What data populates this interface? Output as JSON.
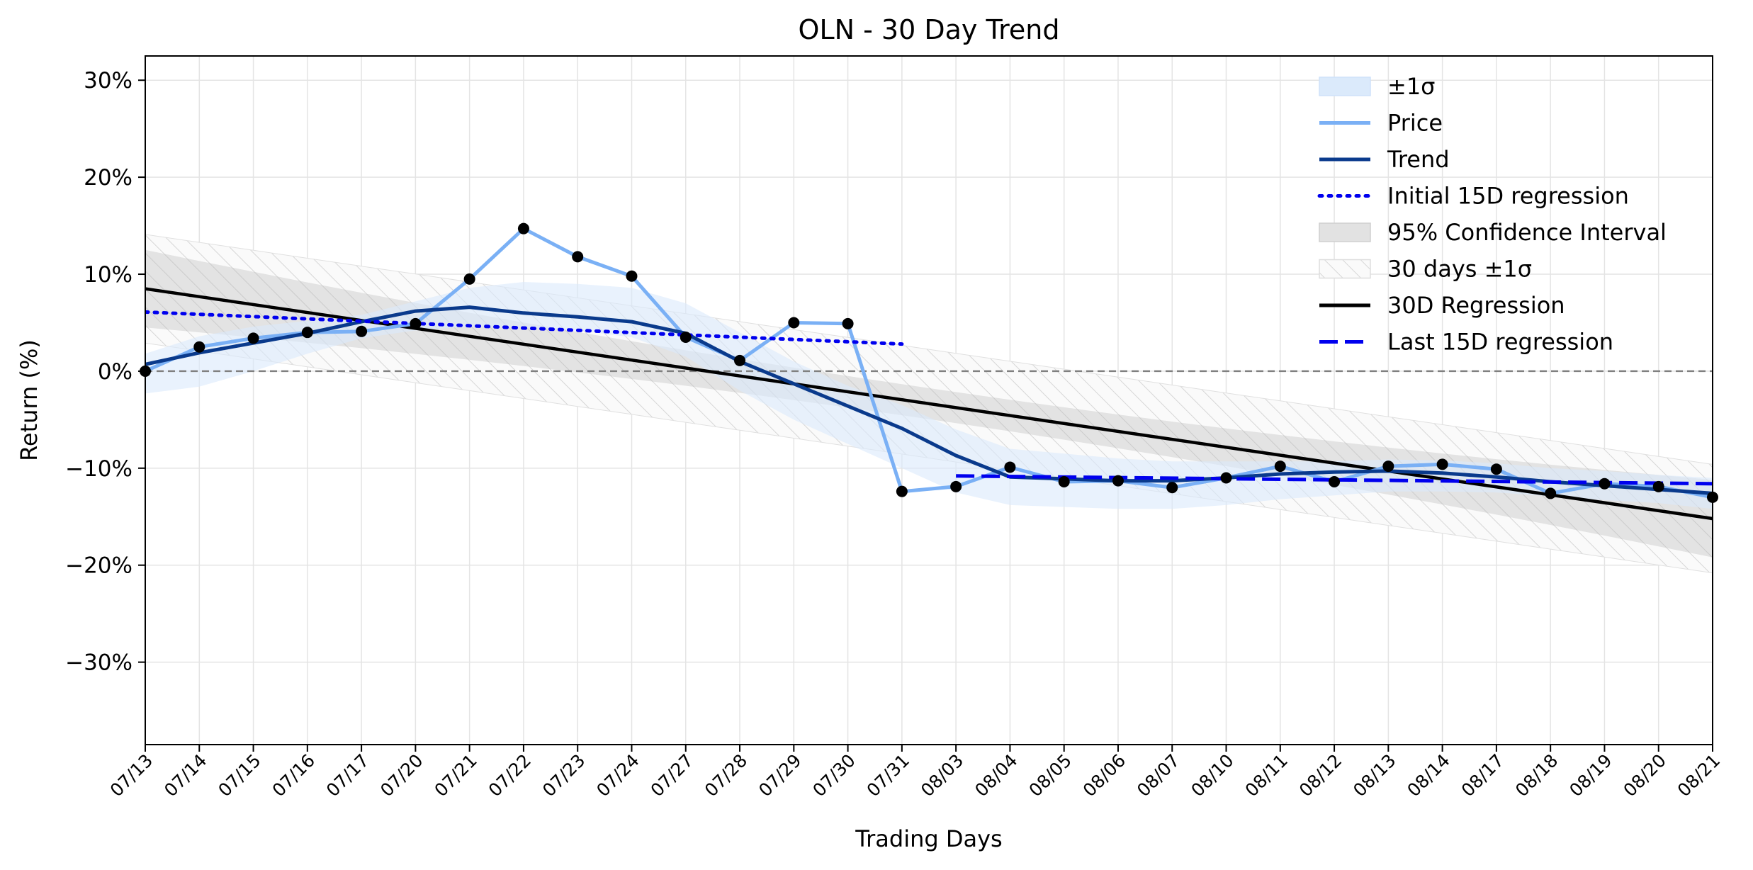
{
  "chart_data": {
    "type": "line",
    "title": "OLN - 30 Day Trend",
    "xlabel": "Trading Days",
    "ylabel": "Return (%)",
    "ylim": [
      -38.5,
      32.5
    ],
    "yticks": [
      30,
      20,
      10,
      0,
      -10,
      -20,
      -30
    ],
    "ytick_labels": [
      "30%",
      "20%",
      "10%",
      "0%",
      "−10%",
      "−20%",
      "−30%"
    ],
    "grid": true,
    "legend_position": "top-right",
    "categories": [
      "07/13",
      "07/14",
      "07/15",
      "07/16",
      "07/17",
      "07/20",
      "07/21",
      "07/22",
      "07/23",
      "07/24",
      "07/27",
      "07/28",
      "07/29",
      "07/30",
      "07/31",
      "08/03",
      "08/04",
      "08/05",
      "08/06",
      "08/07",
      "08/10",
      "08/11",
      "08/12",
      "08/13",
      "08/14",
      "08/17",
      "08/18",
      "08/19",
      "08/20",
      "08/21"
    ],
    "series": [
      {
        "name": "Price",
        "color": "#7ab0f5",
        "values": [
          0.0,
          2.5,
          3.4,
          4.0,
          4.1,
          4.9,
          9.5,
          14.7,
          11.8,
          9.8,
          3.5,
          1.1,
          5.0,
          4.9,
          -12.4,
          -11.9,
          -9.9,
          -11.4,
          -11.3,
          -12.0,
          -11.0,
          -9.8,
          -11.4,
          -9.8,
          -9.6,
          -10.1,
          -12.6,
          -11.6,
          -11.9,
          -13.0
        ]
      },
      {
        "name": "Trend",
        "color": "#0a3a8c",
        "values": [
          0.7,
          1.9,
          2.9,
          3.9,
          5.1,
          6.2,
          6.6,
          6.0,
          5.6,
          5.1,
          3.9,
          1.0,
          -1.3,
          -3.6,
          -5.9,
          -8.7,
          -10.9,
          -11.1,
          -11.3,
          -11.3,
          -11.0,
          -10.6,
          -10.4,
          -10.3,
          -10.5,
          -10.9,
          -11.4,
          -11.8,
          -12.2,
          -12.6
        ]
      }
    ],
    "sigma_band": {
      "name": "±1σ",
      "color": "#dbeafb",
      "upper": [
        1.8,
        3.6,
        4.6,
        5.2,
        5.8,
        7.2,
        8.6,
        9.2,
        9.0,
        8.6,
        7.0,
        4.0,
        1.0,
        -1.5,
        -3.5,
        -6.0,
        -8.0,
        -8.5,
        -9.0,
        -9.3,
        -9.3,
        -9.3,
        -9.3,
        -9.1,
        -9.2,
        -9.5,
        -10.0,
        -10.3,
        -10.7,
        -11.0
      ],
      "lower": [
        -2.3,
        -1.6,
        0.0,
        1.8,
        3.4,
        4.2,
        4.6,
        4.5,
        4.2,
        3.5,
        1.5,
        -2.0,
        -5.0,
        -7.5,
        -10.0,
        -12.5,
        -13.8,
        -14.0,
        -14.2,
        -14.2,
        -13.8,
        -13.2,
        -12.8,
        -12.4,
        -12.4,
        -12.5,
        -12.9,
        -13.3,
        -13.6,
        -14.2
      ]
    },
    "initial_15d_regression": {
      "name": "Initial 15D regression",
      "color": "#0000ee",
      "start": 6.1,
      "end": 2.8,
      "from_index": 0,
      "to_index": 14
    },
    "last_15d_regression": {
      "name": "Last 15D regression",
      "color": "#0000ee",
      "start": -10.8,
      "end": -11.6,
      "from_index": 15,
      "to_index": 29
    },
    "regression_30d": {
      "name": "30D Regression",
      "color": "#000000",
      "start": 8.5,
      "end": -15.2
    },
    "confidence_interval": {
      "name": "95% Confidence Interval",
      "half_width_start": 4.0,
      "half_width_mid": 1.6,
      "half_width_end": 4.0
    },
    "band_30d": {
      "name": "30 days ±1σ",
      "half_width": 5.6
    },
    "zero_line": 0
  }
}
